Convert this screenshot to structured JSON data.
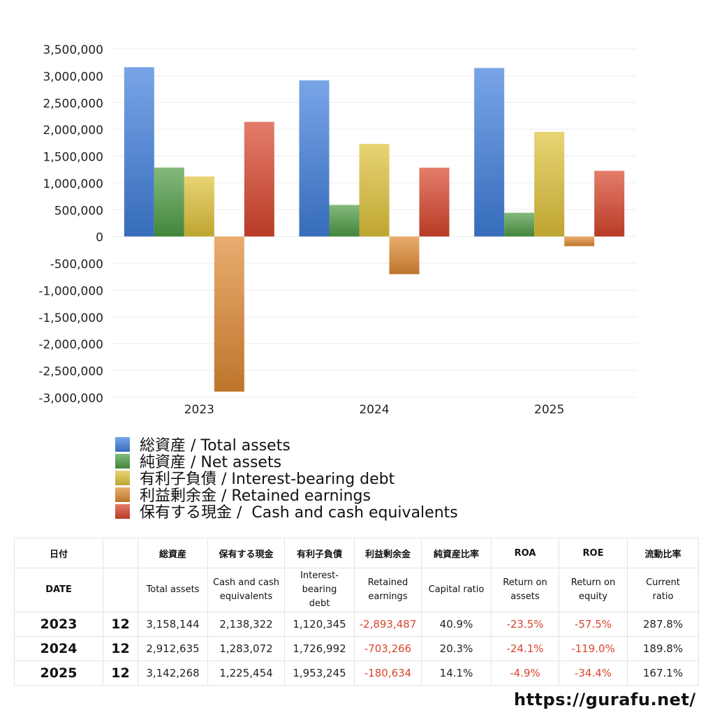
{
  "chart_data": {
    "type": "bar",
    "categories": [
      "2023",
      "2024",
      "2025"
    ],
    "ylim": [
      -3000000,
      3500000
    ],
    "yticks": [
      3500000,
      3000000,
      2500000,
      2000000,
      1500000,
      1000000,
      500000,
      0,
      -500000,
      -1000000,
      -1500000,
      -2000000,
      -2500000,
      -3000000
    ],
    "ytick_labels": [
      "3,500,000",
      "3,000,000",
      "2,500,000",
      "2,000,000",
      "1,500,000",
      "1,000,000",
      "500,000",
      "0",
      "-500,000",
      "-1,000,000",
      "-1,500,000",
      "-2,000,000",
      "-2,500,000",
      "-3,000,000"
    ],
    "grid": true,
    "legend_position": "bottom-left",
    "series": [
      {
        "name": "総資産 / Total assets",
        "color": "#3f7fdc",
        "values": [
          3158144,
          2912635,
          3142268
        ]
      },
      {
        "name": "純資産 / Net assets",
        "color": "#4f9c45",
        "values": [
          1286000,
          589000,
          443000
        ]
      },
      {
        "name": "有利子負債 / Interest-bearing debt",
        "color": "#e0c23a",
        "values": [
          1120345,
          1726992,
          1953245
        ]
      },
      {
        "name": "利益剰余金 / Retained earnings",
        "color": "#e08a33",
        "values": [
          -2893487,
          -703266,
          -180634
        ]
      },
      {
        "name": "保有する現金 /  Cash and cash equivalents",
        "color": "#d9452c",
        "values": [
          2138322,
          1283072,
          1225454
        ]
      }
    ]
  },
  "table": {
    "header_jp": [
      "日付",
      "",
      "総資産",
      "保有する現金",
      "有利子負債",
      "利益剰余金",
      "純資産比率",
      "ROA",
      "ROE",
      "流動比率"
    ],
    "header_en": [
      "DATE",
      "",
      "Total assets",
      "Cash and cash\nequivalents",
      "Interest-\nbearing\ndebt",
      "Retained\nearnings",
      "Capital ratio",
      "Return on\nassets",
      "Return on\nequity",
      "Current\nratio"
    ],
    "rows": [
      [
        "2023",
        "12",
        "3,158,144",
        "2,138,322",
        "1,120,345",
        "-2,893,487",
        "40.9%",
        "-23.5%",
        "-57.5%",
        "287.8%"
      ],
      [
        "2024",
        "12",
        "2,912,635",
        "1,283,072",
        "1,726,992",
        "-703,266",
        "20.3%",
        "-24.1%",
        "-119.0%",
        "189.8%"
      ],
      [
        "2025",
        "12",
        "3,142,268",
        "1,225,454",
        "1,953,245",
        "-180,634",
        "14.1%",
        "-4.9%",
        "-34.4%",
        "167.1%"
      ]
    ]
  },
  "footer": {
    "url": "https://gurafu.net/"
  }
}
